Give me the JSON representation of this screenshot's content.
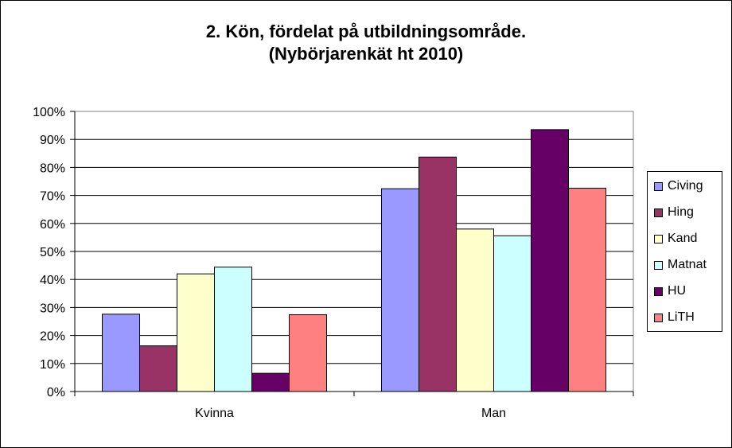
{
  "chart_data": {
    "type": "bar",
    "title": "2. Kön, fördelat på utbildningsområde.",
    "subtitle": "(Nybörjarenkät ht 2010)",
    "categories": [
      "Kvinna",
      "Man"
    ],
    "series": [
      {
        "name": "Civing",
        "color": "#9999FF",
        "values": [
          27.6,
          72.4
        ]
      },
      {
        "name": "Hing",
        "color": "#993366",
        "values": [
          16.3,
          83.7
        ]
      },
      {
        "name": "Kand",
        "color": "#FFFFCC",
        "values": [
          42.0,
          58.0
        ]
      },
      {
        "name": "Matnat",
        "color": "#CCFFFF",
        "values": [
          44.4,
          55.6
        ]
      },
      {
        "name": "HU",
        "color": "#660066",
        "values": [
          6.5,
          93.5
        ]
      },
      {
        "name": "LiTH",
        "color": "#FF8080",
        "values": [
          27.4,
          72.6
        ]
      }
    ],
    "ylim": [
      0,
      100
    ],
    "yticks": [
      "0%",
      "10%",
      "20%",
      "30%",
      "40%",
      "50%",
      "60%",
      "70%",
      "80%",
      "90%",
      "100%"
    ],
    "grid": true,
    "legend": "right"
  }
}
